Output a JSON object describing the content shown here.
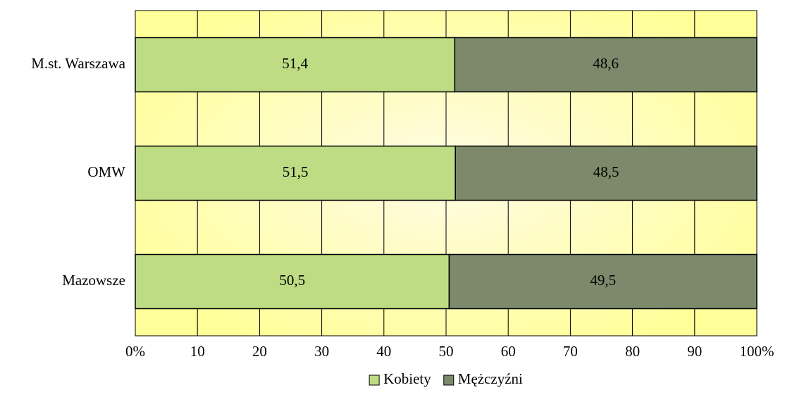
{
  "chart_data": {
    "type": "stacked_barh",
    "categories": [
      "M.st. Warszawa",
      "OMW",
      "Mazowsze"
    ],
    "series": [
      {
        "name": "Kobiety",
        "color": "#bddc83",
        "values": [
          51.4,
          51.5,
          50.5
        ],
        "value_labels": [
          "51,4",
          "51,5",
          "50,5"
        ]
      },
      {
        "name": "Mężczyźni",
        "color": "#7c8a6b",
        "values": [
          48.6,
          48.5,
          49.5
        ],
        "value_labels": [
          "48,6",
          "48,5",
          "49,5"
        ]
      }
    ],
    "xlim": [
      0,
      100
    ],
    "xticks": [
      {
        "value": 0,
        "label": "0%"
      },
      10,
      20,
      30,
      40,
      50,
      60,
      70,
      80,
      90,
      {
        "value": 100,
        "label": "100%"
      }
    ],
    "grid": true,
    "legend": "bottom"
  }
}
